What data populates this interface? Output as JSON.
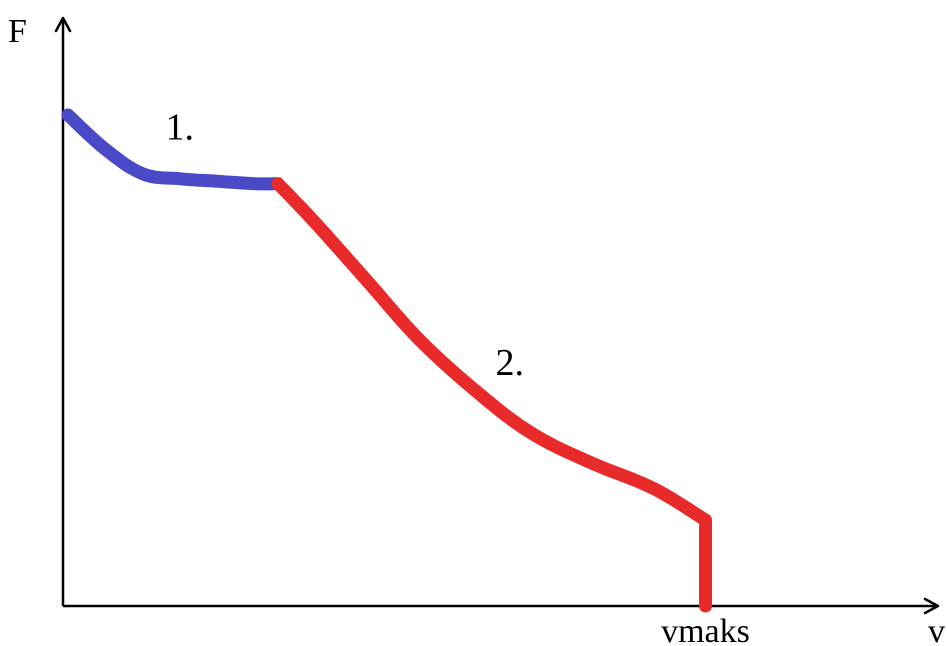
{
  "chart_data": {
    "type": "line",
    "title": "",
    "xlabel": "v",
    "ylabel": "F",
    "grid": false,
    "xlim": [
      0,
      100
    ],
    "ylim": [
      0,
      100
    ],
    "x_tick_labels": [
      {
        "x": 85,
        "label": "vmaks"
      }
    ],
    "series": [
      {
        "name": "1.",
        "color": "#4a4ac8",
        "label_at": [
          13,
          95
        ],
        "x": [
          0,
          5,
          10,
          15,
          20,
          25,
          28
        ],
        "y": [
          100,
          93,
          88,
          87,
          86.5,
          86,
          86
        ]
      },
      {
        "name": "2.",
        "color": "#e82a2a",
        "label_at": [
          57,
          47
        ],
        "x": [
          28,
          33,
          40,
          47,
          55,
          62,
          70,
          78,
          85,
          85
        ],
        "y": [
          86,
          78,
          66,
          54,
          43,
          35,
          29,
          24,
          17.5,
          0
        ]
      }
    ]
  }
}
